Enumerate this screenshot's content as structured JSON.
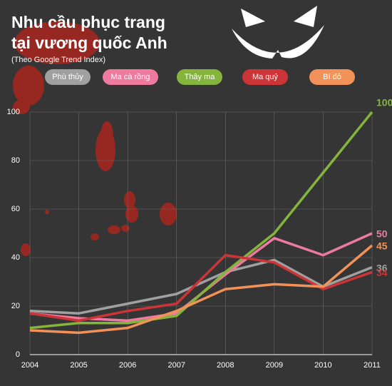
{
  "chart_data": {
    "type": "line",
    "title": "Nhu cầu phục trang",
    "title_line2": "tại vương quốc Anh",
    "subtitle": "(Theo Google Trend Index)",
    "x": [
      2004,
      2005,
      2006,
      2007,
      2008,
      2009,
      2010,
      2011
    ],
    "xlim": [
      2004,
      2011
    ],
    "xticks": [
      2004,
      2005,
      2006,
      2007,
      2008,
      2009,
      2010,
      2011
    ],
    "ylim": [
      0,
      100
    ],
    "yticks": [
      0,
      20,
      40,
      60,
      80,
      100
    ],
    "grid": true,
    "series": [
      {
        "name": "Phù thủy",
        "color": "#a0a0a0",
        "values": [
          18,
          17,
          21,
          25,
          34,
          39,
          28,
          36
        ]
      },
      {
        "name": "Ma cà rồng",
        "color": "#ee7aa0",
        "values": [
          17,
          15,
          14,
          17,
          33,
          48,
          41,
          50
        ]
      },
      {
        "name": "Thây ma",
        "color": "#84b43c",
        "values": [
          11,
          13,
          13,
          16,
          34,
          50,
          75,
          100
        ]
      },
      {
        "name": "Ma quỷ",
        "color": "#cc3438",
        "values": [
          17,
          14,
          18,
          21,
          41,
          38,
          27,
          34
        ]
      },
      {
        "name": "Bí đỏ",
        "color": "#f29258",
        "values": [
          10,
          9,
          11,
          18,
          27,
          29,
          28,
          45
        ]
      }
    ]
  }
}
